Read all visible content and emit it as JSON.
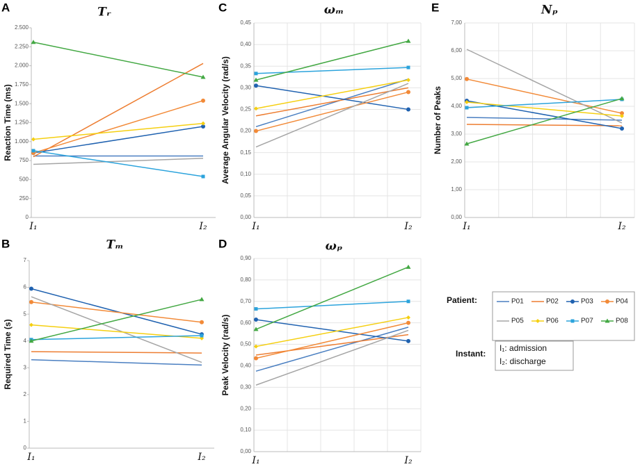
{
  "chart_data": [
    {
      "type": "line",
      "panel": "A",
      "title": "Tᵣ",
      "y_label": "Reaction Time (ms)",
      "categories": [
        "I₁",
        "I₂"
      ],
      "ylim": [
        0,
        2500
      ],
      "yticks": [
        0,
        250,
        500,
        750,
        {
          "value": 1000,
          "label": "1.000"
        },
        {
          "value": 1250,
          "label": "1.250"
        },
        {
          "value": 1500,
          "label": "1.500"
        },
        {
          "value": 1750,
          "label": "1.750"
        },
        {
          "value": 2000,
          "label": "2.000"
        },
        {
          "value": 2250,
          "label": "2.250"
        },
        {
          "value": 2500,
          "label": "2.500"
        }
      ],
      "grid": false,
      "series": [
        {
          "name": "P01",
          "color": "#4a7fc1",
          "marker": "none",
          "values": [
            810,
            810
          ]
        },
        {
          "name": "P02",
          "color": "#ed7d31",
          "marker": "none",
          "values": [
            800,
            2030
          ]
        },
        {
          "name": "P03",
          "color": "#2062b0",
          "marker": "circle",
          "values": [
            850,
            1200
          ]
        },
        {
          "name": "P04",
          "color": "#f28a38",
          "marker": "circle",
          "values": [
            850,
            1540
          ]
        },
        {
          "name": "P05",
          "color": "#a5a5a5",
          "marker": "none",
          "values": [
            700,
            780
          ]
        },
        {
          "name": "P06",
          "color": "#f5cf10",
          "marker": "diamond",
          "values": [
            1030,
            1240
          ]
        },
        {
          "name": "P07",
          "color": "#2ba3dc",
          "marker": "square",
          "values": [
            880,
            540
          ]
        },
        {
          "name": "P08",
          "color": "#43a843",
          "marker": "triangle",
          "values": [
            2310,
            1850
          ]
        }
      ]
    },
    {
      "type": "line",
      "panel": "B",
      "title": "Tₘ",
      "y_label": "Required Time (s)",
      "categories": [
        "I₁",
        "I₂"
      ],
      "ylim": [
        0,
        7
      ],
      "yticks": [
        0,
        1,
        2,
        3,
        4,
        5,
        6,
        7
      ],
      "grid": false,
      "series": [
        {
          "name": "P01",
          "color": "#4a7fc1",
          "marker": "none",
          "values": [
            3.3,
            3.1
          ]
        },
        {
          "name": "P02",
          "color": "#ed7d31",
          "marker": "none",
          "values": [
            3.6,
            3.55
          ]
        },
        {
          "name": "P03",
          "color": "#2062b0",
          "marker": "circle",
          "values": [
            5.95,
            4.25
          ]
        },
        {
          "name": "P04",
          "color": "#f28a38",
          "marker": "circle",
          "values": [
            5.45,
            4.7
          ]
        },
        {
          "name": "P05",
          "color": "#a5a5a5",
          "marker": "none",
          "values": [
            5.65,
            3.2
          ]
        },
        {
          "name": "P06",
          "color": "#f5cf10",
          "marker": "diamond",
          "values": [
            4.6,
            4.1
          ]
        },
        {
          "name": "P07",
          "color": "#2ba3dc",
          "marker": "square",
          "values": [
            4.05,
            4.2
          ]
        },
        {
          "name": "P08",
          "color": "#43a843",
          "marker": "triangle",
          "values": [
            4.0,
            5.55
          ]
        }
      ]
    },
    {
      "type": "line",
      "panel": "C",
      "title": "ωₘ",
      "y_label": "Average Angular Velocity (rad/s)",
      "categories": [
        "I₁",
        "I₂"
      ],
      "ylim": [
        0,
        0.45
      ],
      "yticks": [
        {
          "value": 0,
          "label": "0,00"
        },
        {
          "value": 0.05,
          "label": "0,05"
        },
        {
          "value": 0.1,
          "label": "0,10"
        },
        {
          "value": 0.15,
          "label": "0,15"
        },
        {
          "value": 0.2,
          "label": "0,20"
        },
        {
          "value": 0.25,
          "label": "0,25"
        },
        {
          "value": 0.3,
          "label": "0,30"
        },
        {
          "value": 0.35,
          "label": "0,35"
        },
        {
          "value": 0.4,
          "label": "0,40"
        },
        {
          "value": 0.45,
          "label": "0,45"
        }
      ],
      "grid": true,
      "series": [
        {
          "name": "P01",
          "color": "#4a7fc1",
          "marker": "none",
          "values": [
            0.21,
            0.32
          ]
        },
        {
          "name": "P02",
          "color": "#ed7d31",
          "marker": "none",
          "values": [
            0.235,
            0.3
          ]
        },
        {
          "name": "P03",
          "color": "#2062b0",
          "marker": "circle",
          "values": [
            0.305,
            0.25
          ]
        },
        {
          "name": "P04",
          "color": "#f28a38",
          "marker": "circle",
          "values": [
            0.2,
            0.29
          ]
        },
        {
          "name": "P05",
          "color": "#a5a5a5",
          "marker": "none",
          "values": [
            0.163,
            0.31
          ]
        },
        {
          "name": "P06",
          "color": "#f5cf10",
          "marker": "diamond",
          "values": [
            0.252,
            0.318
          ]
        },
        {
          "name": "P07",
          "color": "#2ba3dc",
          "marker": "square",
          "values": [
            0.333,
            0.347
          ]
        },
        {
          "name": "P08",
          "color": "#43a843",
          "marker": "triangle",
          "values": [
            0.318,
            0.408
          ]
        }
      ]
    },
    {
      "type": "line",
      "panel": "D",
      "title": "ωₚ",
      "y_label": "Peak Velocity (rad/s)",
      "categories": [
        "I₁",
        "I₂"
      ],
      "ylim": [
        0,
        0.9
      ],
      "yticks": [
        {
          "value": 0,
          "label": "0,00"
        },
        {
          "value": 0.1,
          "label": "0,10"
        },
        {
          "value": 0.2,
          "label": "0,20"
        },
        {
          "value": 0.3,
          "label": "0,30"
        },
        {
          "value": 0.4,
          "label": "0,40"
        },
        {
          "value": 0.5,
          "label": "0,50"
        },
        {
          "value": 0.6,
          "label": "0,60"
        },
        {
          "value": 0.7,
          "label": "0,70"
        },
        {
          "value": 0.8,
          "label": "0,80"
        },
        {
          "value": 0.9,
          "label": "0,90"
        }
      ],
      "grid": true,
      "series": [
        {
          "name": "P01",
          "color": "#4a7fc1",
          "marker": "none",
          "values": [
            0.375,
            0.58
          ]
        },
        {
          "name": "P02",
          "color": "#ed7d31",
          "marker": "none",
          "values": [
            0.45,
            0.545
          ]
        },
        {
          "name": "P03",
          "color": "#2062b0",
          "marker": "circle",
          "values": [
            0.615,
            0.515
          ]
        },
        {
          "name": "P04",
          "color": "#f28a38",
          "marker": "circle",
          "values": [
            0.435,
            0.6
          ]
        },
        {
          "name": "P05",
          "color": "#a5a5a5",
          "marker": "none",
          "values": [
            0.31,
            0.565
          ]
        },
        {
          "name": "P06",
          "color": "#f5cf10",
          "marker": "diamond",
          "values": [
            0.49,
            0.625
          ]
        },
        {
          "name": "P07",
          "color": "#2ba3dc",
          "marker": "square",
          "values": [
            0.665,
            0.7
          ]
        },
        {
          "name": "P08",
          "color": "#43a843",
          "marker": "triangle",
          "values": [
            0.57,
            0.86
          ]
        }
      ]
    },
    {
      "type": "line",
      "panel": "E",
      "title": "Nₚ",
      "y_label": "Number of Peaks",
      "categories": [
        "I₁",
        "I₂"
      ],
      "ylim": [
        0,
        7
      ],
      "yticks": [
        {
          "value": 0,
          "label": "0,00"
        },
        {
          "value": 1,
          "label": "1,00"
        },
        {
          "value": 2,
          "label": "2,00"
        },
        {
          "value": 3,
          "label": "3,00"
        },
        {
          "value": 4,
          "label": "4,00"
        },
        {
          "value": 5,
          "label": "5,00"
        },
        {
          "value": 6,
          "label": "6,00"
        },
        {
          "value": 7,
          "label": "7,00"
        }
      ],
      "grid": true,
      "series": [
        {
          "name": "P01",
          "color": "#4a7fc1",
          "marker": "none",
          "values": [
            3.6,
            3.5
          ]
        },
        {
          "name": "P02",
          "color": "#ed7d31",
          "marker": "none",
          "values": [
            3.35,
            3.3
          ]
        },
        {
          "name": "P03",
          "color": "#2062b0",
          "marker": "circle",
          "values": [
            4.2,
            3.2
          ]
        },
        {
          "name": "P04",
          "color": "#f28a38",
          "marker": "circle",
          "values": [
            4.98,
            3.75
          ]
        },
        {
          "name": "P05",
          "color": "#a5a5a5",
          "marker": "none",
          "values": [
            6.05,
            3.4
          ]
        },
        {
          "name": "P06",
          "color": "#f5cf10",
          "marker": "diamond",
          "values": [
            4.15,
            3.65
          ]
        },
        {
          "name": "P07",
          "color": "#2ba3dc",
          "marker": "square",
          "values": [
            3.95,
            4.25
          ]
        },
        {
          "name": "P08",
          "color": "#43a843",
          "marker": "triangle",
          "values": [
            2.65,
            4.28
          ]
        }
      ]
    }
  ],
  "legend_title": "Patient:",
  "instant": {
    "label": "Instant:",
    "items": [
      "I₁: admission",
      "I₂: discharge"
    ]
  }
}
